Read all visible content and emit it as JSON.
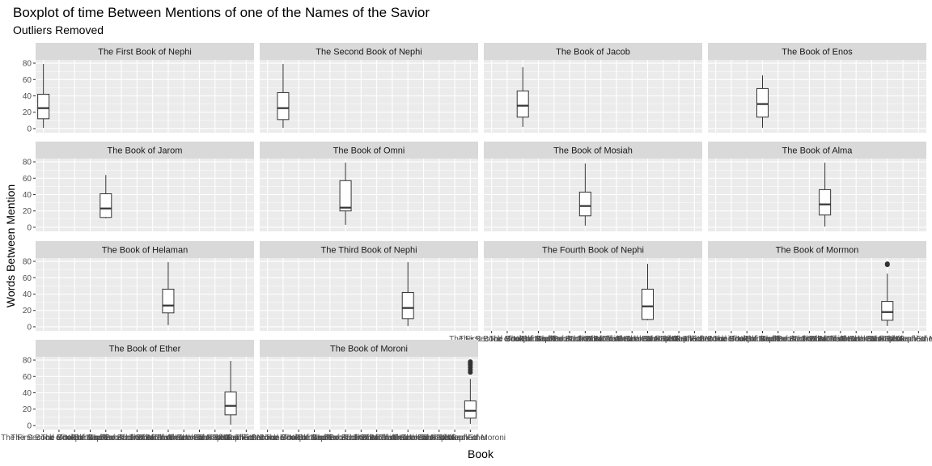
{
  "chart_data": {
    "type": "boxplot",
    "title": "Boxplot of time Between Mentions of one of the Names of the Savior",
    "subtitle": "Outliers Removed",
    "xlabel": "Book",
    "ylabel": "Words Between Mention",
    "ylim": [
      -5,
      84
    ],
    "yticks": [
      0,
      20,
      40,
      60,
      80
    ],
    "grid": true,
    "categories": [
      "The First Book of Nephi",
      "The Second Book of Nephi",
      "The Book of Jacob",
      "The Book of Enos",
      "The Book of Jarom",
      "The Book of Omni",
      "The Book of Mosiah",
      "The Book of Alma",
      "The Book of Helaman",
      "The Third Book of Nephi",
      "The Fourth Book of Nephi",
      "The Book of Mormon",
      "The Book of Ether",
      "The Book of Moroni"
    ],
    "panels": [
      {
        "name": "The First Book of Nephi",
        "box": {
          "min": 1,
          "q1": 12,
          "median": 25,
          "q3": 42,
          "max": 79
        },
        "outliers": []
      },
      {
        "name": "The Second Book of Nephi",
        "box": {
          "min": 1,
          "q1": 11,
          "median": 25,
          "q3": 44,
          "max": 79
        },
        "outliers": []
      },
      {
        "name": "The Book of Jacob",
        "box": {
          "min": 2,
          "q1": 14,
          "median": 28,
          "q3": 46,
          "max": 75
        },
        "outliers": []
      },
      {
        "name": "The Book of Enos",
        "box": {
          "min": 1,
          "q1": 14,
          "median": 30,
          "q3": 49,
          "max": 65
        },
        "outliers": []
      },
      {
        "name": "The Book of Jarom",
        "box": {
          "min": 11,
          "q1": 12,
          "median": 23,
          "q3": 41,
          "max": 64
        },
        "outliers": []
      },
      {
        "name": "The Book of Omni",
        "box": {
          "min": 3,
          "q1": 20,
          "median": 24,
          "q3": 57,
          "max": 79
        },
        "outliers": []
      },
      {
        "name": "The Book of Mosiah",
        "box": {
          "min": 2,
          "q1": 14,
          "median": 26,
          "q3": 43,
          "max": 78
        },
        "outliers": []
      },
      {
        "name": "The Book of Alma",
        "box": {
          "min": 1,
          "q1": 15,
          "median": 28,
          "q3": 46,
          "max": 79
        },
        "outliers": []
      },
      {
        "name": "The Book of Helaman",
        "box": {
          "min": 2,
          "q1": 17,
          "median": 26,
          "q3": 46,
          "max": 79
        },
        "outliers": []
      },
      {
        "name": "The Third Book of Nephi",
        "box": {
          "min": 1,
          "q1": 10,
          "median": 23,
          "q3": 42,
          "max": 79
        },
        "outliers": []
      },
      {
        "name": "The Fourth Book of Nephi",
        "box": {
          "min": 8,
          "q1": 9,
          "median": 25,
          "q3": 46,
          "max": 77
        },
        "outliers": []
      },
      {
        "name": "The Book of Mormon",
        "box": {
          "min": 1,
          "q1": 8,
          "median": 18,
          "q3": 31,
          "max": 65
        },
        "outliers": [
          76,
          77
        ]
      },
      {
        "name": "The Book of Ether",
        "box": {
          "min": 1,
          "q1": 13,
          "median": 24,
          "q3": 41,
          "max": 79
        },
        "outliers": []
      },
      {
        "name": "The Book of Moroni",
        "box": {
          "min": 2,
          "q1": 9,
          "median": 18,
          "q3": 30,
          "max": 57
        },
        "outliers": [
          65,
          68,
          71,
          74,
          76,
          78
        ]
      }
    ],
    "colors": {
      "panel_bg": "#ebebeb",
      "strip_bg": "#d9d9d9",
      "grid": "#ffffff",
      "box_fill": "#ffffff",
      "box_line": "#333333",
      "outlier": "#333333",
      "tick_text": "#4d4d4d",
      "tick_line": "#333333"
    }
  }
}
